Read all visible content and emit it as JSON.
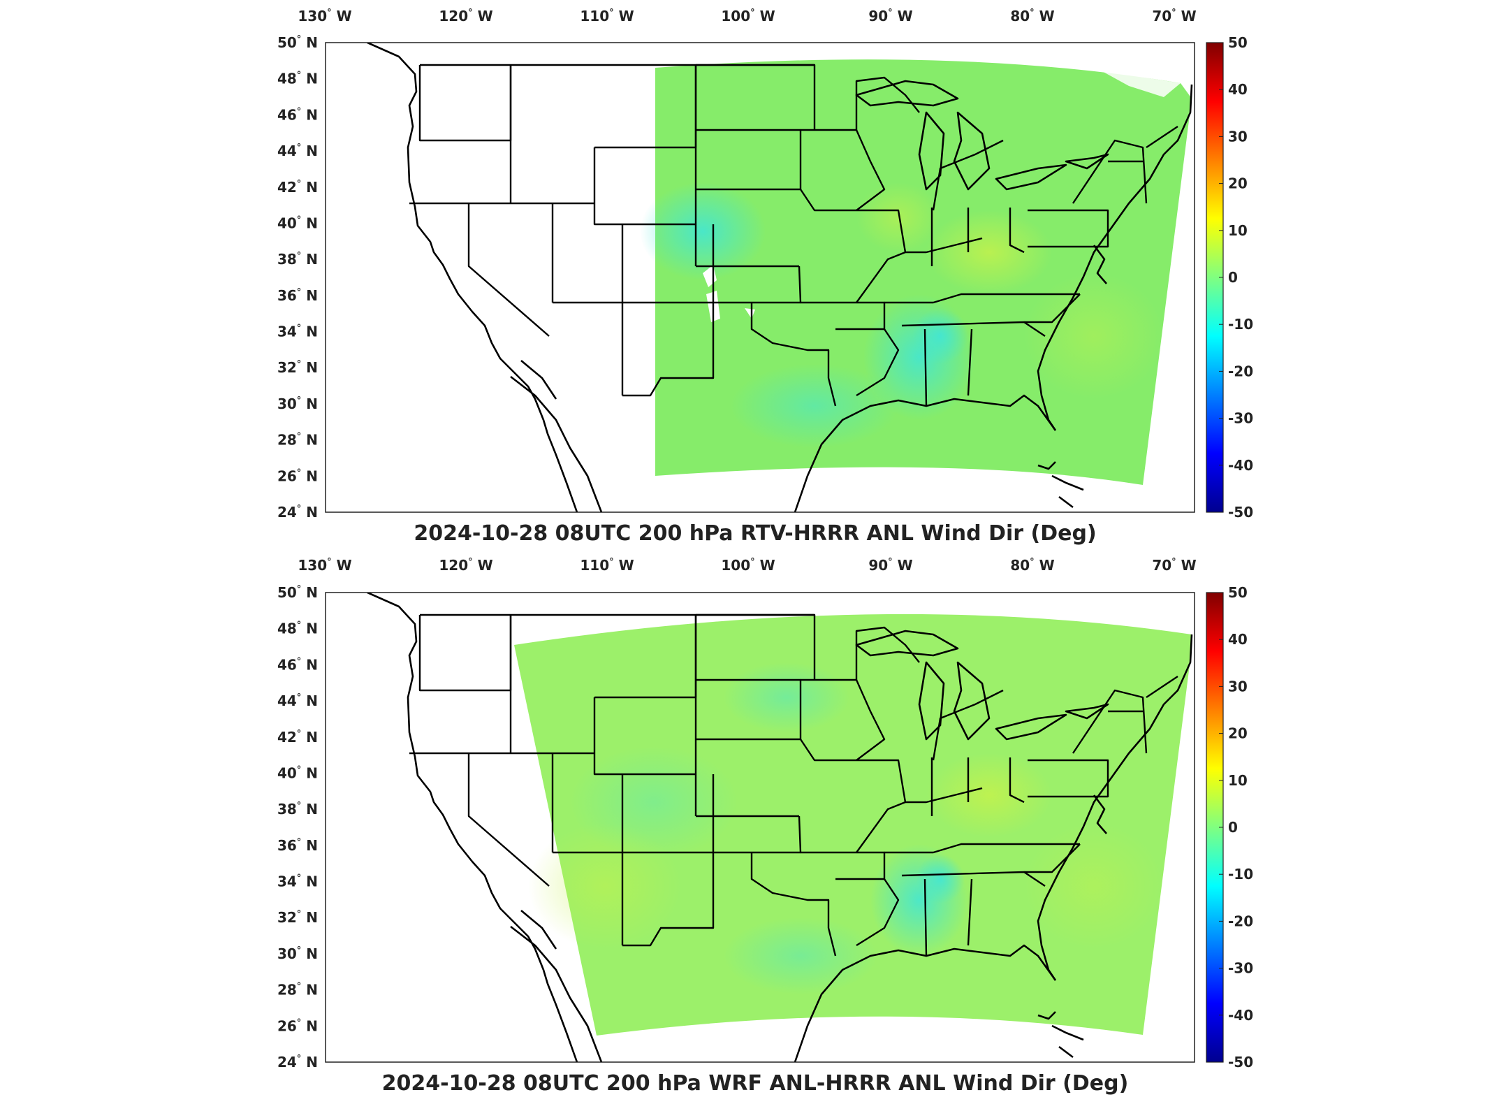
{
  "panels": [
    {
      "id": "top",
      "title": "2024-10-28 08UTC 200 hPa RTV-HRRR ANL Wind Dir (Deg)",
      "lon_labels": [
        "130",
        "120",
        "110",
        "100",
        "90",
        "80",
        "70"
      ],
      "lat_labels": [
        "50",
        "48",
        "46",
        "44",
        "42",
        "40",
        "38",
        "36",
        "34",
        "32",
        "30",
        "28",
        "26",
        "24"
      ],
      "lon_suffix": "W",
      "lat_suffix": "N",
      "colorbar_ticks": [
        "50",
        "40",
        "30",
        "20",
        "10",
        "0",
        "-10",
        "-20",
        "-30",
        "-40",
        "-50"
      ],
      "field_color": "#86ec6a"
    },
    {
      "id": "bottom",
      "title": "2024-10-28 08UTC 200 hPa WRF ANL-HRRR ANL Wind Dir (Deg)",
      "lon_labels": [
        "130",
        "120",
        "110",
        "100",
        "90",
        "80",
        "70"
      ],
      "lat_labels": [
        "50",
        "48",
        "46",
        "44",
        "42",
        "40",
        "38",
        "36",
        "34",
        "32",
        "30",
        "28",
        "26",
        "24"
      ],
      "lon_suffix": "W",
      "lat_suffix": "N",
      "colorbar_ticks": [
        "50",
        "40",
        "30",
        "20",
        "10",
        "0",
        "-10",
        "-20",
        "-30",
        "-40",
        "-50"
      ],
      "field_color": "#9cf06a"
    }
  ],
  "colorbar": {
    "min": -50,
    "max": 50,
    "colormap": "jet",
    "colors": [
      "#00008f",
      "#0000ff",
      "#0080ff",
      "#00ffff",
      "#80ff80",
      "#ffff00",
      "#ff8000",
      "#ff0000",
      "#800000"
    ]
  },
  "colors": {
    "field_cyan": "#4fe6c8",
    "field_yellow": "#c9f24a",
    "border": "#000000"
  }
}
